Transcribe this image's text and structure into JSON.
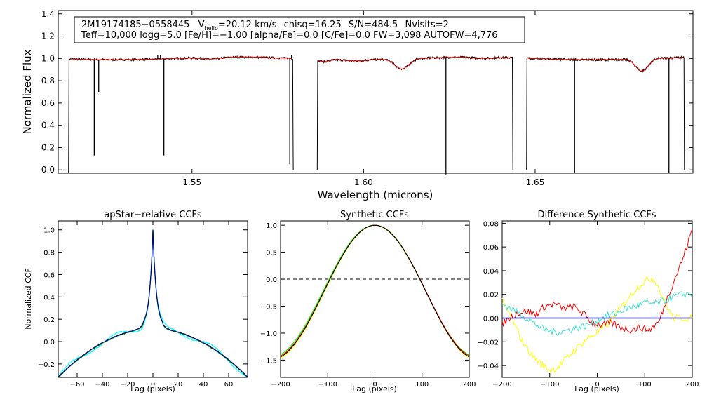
{
  "chart_data": [
    {
      "type": "line",
      "panel": "spectrum",
      "star_id": "2M19174185−0558445",
      "vhelio_prefix": "V",
      "vhelio_sub": "helio",
      "vhelio_value": "=20.12 km/s",
      "chisq": "chisq=16.25",
      "snr": "S/N=484.5",
      "nvisits": "Nvisits=2",
      "params_line": "Teff=10,000 logg=5.0 [Fe/H]=−1.00 [alpha/Fe]=0.0 [C/Fe]=0.0 FW=3,098 AUTOFW=4,776",
      "xlabel": "Wavelength (microns)",
      "ylabel": "Normalized Flux",
      "xlim": [
        1.511,
        1.696
      ],
      "ylim": [
        -0.03,
        1.43
      ],
      "xticks": [
        1.55,
        1.6,
        1.65
      ],
      "xticklabels": [
        "1.55",
        "1.60",
        "1.65"
      ],
      "yticks": [
        0.0,
        0.2,
        0.4,
        0.6,
        0.8,
        1.0,
        1.2,
        1.4
      ],
      "yticklabels": [
        "0.0",
        "0.2",
        "0.4",
        "0.6",
        "0.8",
        "1.0",
        "1.2",
        "1.4"
      ],
      "chips": [
        [
          1.514,
          1.5795
        ],
        [
          1.5865,
          1.6435
        ],
        [
          1.6475,
          1.6935
        ]
      ],
      "absorption_lines": [
        [
          1.6112,
          0.09,
          0.0028
        ],
        [
          1.6811,
          0.11,
          0.0025
        ],
        [
          1.5885,
          0.02,
          0.002
        ],
        [
          1.5555,
          0.015,
          0.004
        ],
        [
          1.5975,
          0.01,
          0.004
        ],
        [
          1.6345,
          0.01,
          0.004
        ]
      ],
      "spikes": [
        [
          1.5215,
          0.13
        ],
        [
          1.5228,
          0.7
        ],
        [
          1.54,
          1.03
        ],
        [
          1.5408,
          1.03
        ],
        [
          1.5418,
          0.13
        ],
        [
          1.579,
          1.03
        ],
        [
          1.5785,
          0.05
        ],
        [
          1.624,
          -0.04
        ],
        [
          1.6615,
          -0.03
        ],
        [
          1.689,
          -0.03
        ]
      ],
      "series": [
        {
          "name": "observed",
          "color": "#000000"
        },
        {
          "name": "model",
          "color": "#ff0000"
        }
      ]
    },
    {
      "type": "line",
      "panel": "apstar_ccf",
      "title": "apStar−relative CCFs",
      "xlabel": "Lag (pixels)",
      "ylabel": "Normalized CCF",
      "xlim": [
        -75,
        75
      ],
      "ylim": [
        -0.32,
        1.08
      ],
      "xticks": [
        -60,
        -40,
        -20,
        0,
        20,
        40,
        60
      ],
      "xticklabels": [
        "−60",
        "−40",
        "−20",
        "0",
        "20",
        "40",
        "60"
      ],
      "yticks": [
        -0.2,
        0.0,
        0.2,
        0.4,
        0.6,
        0.8,
        1.0
      ],
      "yticklabels": [
        "−0.2",
        "0.0",
        "0.2",
        "0.4",
        "0.6",
        "0.8",
        "1.0"
      ],
      "peak": 1.0,
      "series": [
        {
          "name": "visit1",
          "color": "#00ffff"
        },
        {
          "name": "visit2",
          "color": "#008000"
        },
        {
          "name": "combined",
          "color": "#00008b"
        }
      ]
    },
    {
      "type": "line",
      "panel": "synthetic_ccf",
      "title": "Synthetic CCFs",
      "xlabel": "Lag (pixels)",
      "ylabel": "",
      "xlim": [
        -200,
        200
      ],
      "ylim": [
        -1.82,
        1.08
      ],
      "xticks": [
        -200,
        -100,
        0,
        100,
        200
      ],
      "xticklabels": [
        "−200",
        "−100",
        "0",
        "100",
        "200"
      ],
      "yticks": [
        -1.5,
        -1.0,
        -0.5,
        0.0,
        0.5,
        1.0
      ],
      "yticklabels": [
        "−1.5",
        "−1.0",
        "−0.5",
        "0.0",
        "0.5",
        "1.0"
      ],
      "zero_line": 0.0,
      "series": [
        {
          "name": "visit1",
          "color": "#00ff00"
        },
        {
          "name": "visit2",
          "color": "#ffff00"
        },
        {
          "name": "combined",
          "color": "#ff0000"
        },
        {
          "name": "template",
          "color": "#000000"
        }
      ]
    },
    {
      "type": "line",
      "panel": "difference_ccf",
      "title": "Difference Synthetic CCFs",
      "xlabel": "Lag (pixels)",
      "ylabel": "",
      "xlim": [
        -200,
        200
      ],
      "ylim": [
        -0.05,
        0.082
      ],
      "xticks": [
        -200,
        -100,
        0,
        100,
        200
      ],
      "xticklabels": [
        "−200",
        "−100",
        "0",
        "100",
        "200"
      ],
      "yticks": [
        -0.04,
        -0.02,
        0.0,
        0.02,
        0.04,
        0.06,
        0.08
      ],
      "yticklabels": [
        "−0.04",
        "−0.02",
        "0.00",
        "0.02",
        "0.04",
        "0.06",
        "0.08"
      ],
      "series": [
        {
          "name": "yellow",
          "color": "#ffff00",
          "x": [
            -200,
            -180,
            -160,
            -140,
            -120,
            -100,
            -85,
            -70,
            -55,
            -40,
            -20,
            0,
            20,
            40,
            60,
            80,
            100,
            115,
            125,
            140,
            160,
            180,
            200
          ],
          "y": [
            0.014,
            0.0,
            -0.018,
            -0.03,
            -0.038,
            -0.044,
            -0.042,
            -0.036,
            -0.03,
            -0.024,
            -0.017,
            -0.012,
            -0.006,
            0.004,
            0.014,
            0.024,
            0.031,
            0.034,
            0.03,
            0.015,
            0.0,
            0.0,
            0.0
          ]
        },
        {
          "name": "red",
          "color": "#ff0000",
          "x": [
            -200,
            -185,
            -170,
            -150,
            -130,
            -110,
            -90,
            -70,
            -50,
            -30,
            -10,
            10,
            30,
            50,
            70,
            90,
            110,
            130,
            150,
            165,
            180,
            200
          ],
          "y": [
            -0.005,
            0.0,
            0.004,
            0.006,
            0.003,
            0.01,
            0.012,
            0.008,
            0.01,
            0.004,
            -0.004,
            -0.006,
            -0.004,
            -0.008,
            -0.01,
            -0.008,
            -0.01,
            -0.003,
            0.02,
            0.035,
            0.05,
            0.075
          ]
        },
        {
          "name": "cyan",
          "color": "#40e0d0",
          "x": [
            -200,
            -180,
            -160,
            -140,
            -120,
            -100,
            -80,
            -60,
            -40,
            -20,
            0,
            20,
            40,
            60,
            80,
            100,
            120,
            140,
            160,
            180,
            200
          ],
          "y": [
            0.012,
            0.008,
            0.003,
            -0.002,
            -0.008,
            -0.011,
            -0.012,
            -0.01,
            -0.008,
            -0.006,
            -0.002,
            0.002,
            0.004,
            0.008,
            0.01,
            0.013,
            0.012,
            0.014,
            0.018,
            0.02,
            0.021
          ]
        },
        {
          "name": "navy",
          "color": "#00008b",
          "x": [
            -200,
            200
          ],
          "y": [
            0.0,
            0.0
          ]
        }
      ]
    }
  ]
}
